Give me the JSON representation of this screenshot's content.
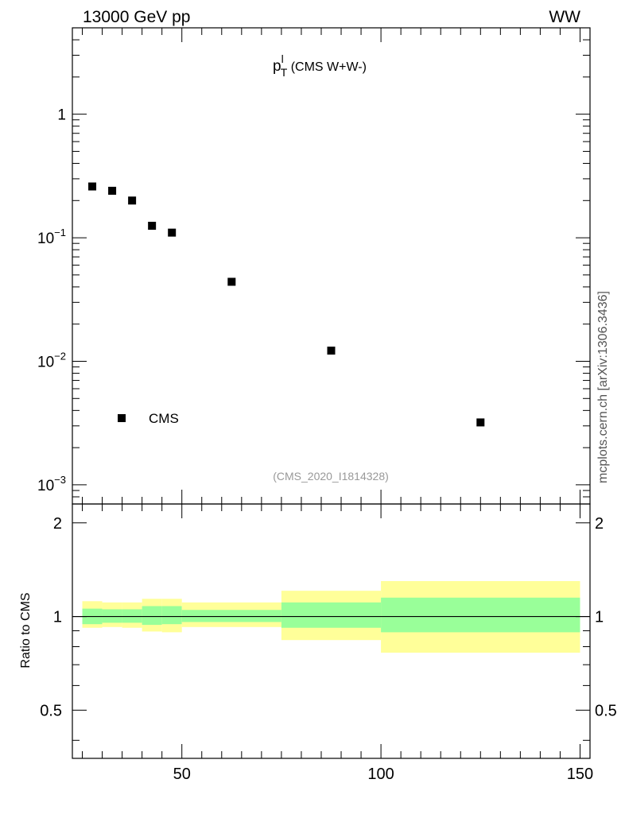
{
  "header": {
    "left": "13000 GeV pp",
    "right": "WW"
  },
  "side_label": "mcplots.cern.ch [arXiv:1306.3436]",
  "chart_data": [
    {
      "type": "scatter",
      "title_main": "p",
      "title_sup": "l",
      "title_sub": "T",
      "title_rest": " (CMS W+W-)",
      "watermark": "(CMS_2020_I1814328)",
      "xlim": [
        22.5,
        152.5
      ],
      "ylim": [
        0.0007,
        5.0
      ],
      "yscale": "log",
      "ytick_labels": [
        {
          "value": 1,
          "mant": "1",
          "exp": ""
        },
        {
          "value": 0.1,
          "mant": "10",
          "exp": "−1"
        },
        {
          "value": 0.01,
          "mant": "10",
          "exp": "−2"
        },
        {
          "value": 0.001,
          "mant": "10",
          "exp": "−3"
        }
      ],
      "legend": [
        {
          "name": "CMS",
          "marker": "square"
        }
      ],
      "legend_position": "bottom-left",
      "series": [
        {
          "name": "CMS",
          "x": [
            27.5,
            32.5,
            37.5,
            42.5,
            47.5,
            62.5,
            87.5,
            125
          ],
          "y": [
            0.26,
            0.24,
            0.2,
            0.125,
            0.11,
            0.044,
            0.0122,
            0.0032
          ]
        }
      ]
    },
    {
      "type": "area",
      "ylabel": "Ratio to CMS",
      "xlim": [
        22.5,
        152.5
      ],
      "ylim": [
        0.35,
        2.3
      ],
      "yscale": "log",
      "ytick_labels": [
        "2",
        "1",
        "0.5"
      ],
      "ytick_values": [
        2,
        1,
        0.5
      ],
      "xtick_labels": [
        "50",
        "100",
        "150"
      ],
      "xtick_values": [
        50,
        100,
        150
      ],
      "reference_line": 1.0,
      "bands": [
        {
          "x_low": 25,
          "x_high": 30,
          "inner": [
            0.945,
            1.06
          ],
          "outer": [
            0.92,
            1.12
          ]
        },
        {
          "x_low": 30,
          "x_high": 35,
          "inner": [
            0.955,
            1.055
          ],
          "outer": [
            0.925,
            1.11
          ]
        },
        {
          "x_low": 35,
          "x_high": 40,
          "inner": [
            0.955,
            1.055
          ],
          "outer": [
            0.92,
            1.11
          ]
        },
        {
          "x_low": 40,
          "x_high": 45,
          "inner": [
            0.94,
            1.08
          ],
          "outer": [
            0.895,
            1.14
          ]
        },
        {
          "x_low": 45,
          "x_high": 50,
          "inner": [
            0.945,
            1.08
          ],
          "outer": [
            0.89,
            1.14
          ]
        },
        {
          "x_low": 50,
          "x_high": 75,
          "inner": [
            0.96,
            1.05
          ],
          "outer": [
            0.925,
            1.11
          ]
        },
        {
          "x_low": 75,
          "x_high": 100,
          "inner": [
            0.92,
            1.11
          ],
          "outer": [
            0.84,
            1.21
          ]
        },
        {
          "x_low": 100,
          "x_high": 150,
          "inner": [
            0.89,
            1.15
          ],
          "outer": [
            0.765,
            1.3
          ]
        }
      ],
      "colors": {
        "inner": "#99ff99",
        "outer": "#ffff99"
      }
    }
  ]
}
